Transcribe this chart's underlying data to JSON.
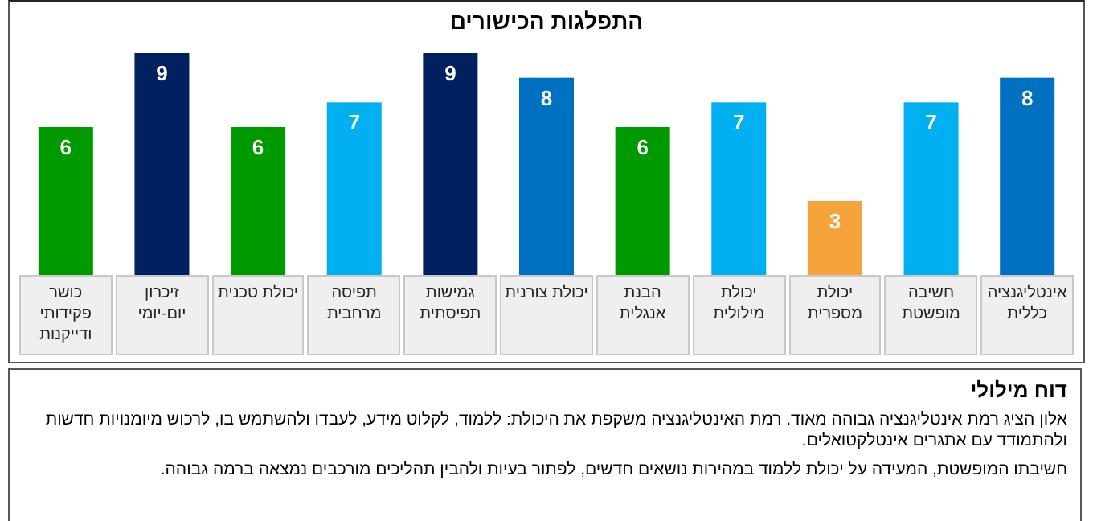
{
  "chart_data": {
    "type": "bar",
    "title": "התפלגות הכישורים",
    "categories": [
      "כושר פקידותי ודייקנות",
      "זיכרון יום-יומי",
      "יכולת טכנית",
      "תפיסה מרחבית",
      "גמישות תפיסתית",
      "יכולת צורנית",
      "הבנת אנגלית",
      "יכולת מילולית",
      "יכולת מספרית",
      "חשיבה מופשטת",
      "אינטליגנציה כללית"
    ],
    "values": [
      6,
      9,
      6,
      7,
      9,
      8,
      6,
      7,
      3,
      7,
      8
    ],
    "colors": [
      "#009900",
      "#002060",
      "#009900",
      "#00b0f0",
      "#002060",
      "#0070c0",
      "#009900",
      "#00b0f0",
      "#f4a43a",
      "#00b0f0",
      "#0070c0"
    ],
    "data_labels": true,
    "annotations": [
      "דוח מילולי",
      "אלון הציג רמת אינטליגנציה גבוהה מאוד. רמת האינטליגנציה משקפת את היכולת: ללמוד, לקלוט מידע, לעבדו ולהשתמש בו, לרכוש מיומנויות חדשות ולהתמודד עם אתגרים אינטלקטואלים.",
      "חשיבתו המופשטת, המעידה על יכולת ללמוד במהירות נושאים חדשים, לפתור בעיות ולהבין תהליכים מורכבים נמצאה ברמה גבוהה."
    ]
  }
}
